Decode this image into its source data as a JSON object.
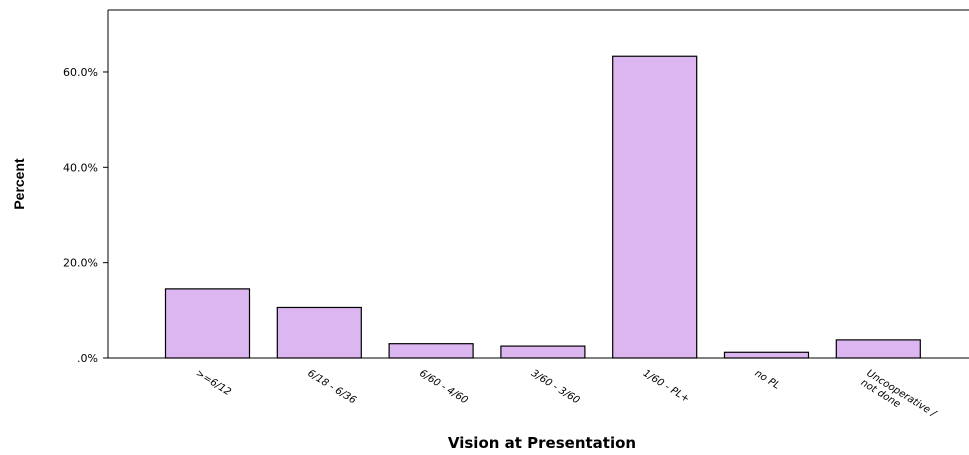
{
  "chart_data": {
    "type": "bar",
    "title": "",
    "xlabel": "Vision at Presentation",
    "ylabel": "Percent",
    "categories": [
      ">=6/12",
      "6/18 - 6/36",
      "6/60 - 4/60",
      "3/60 - 3/60",
      "1/60 - PL+",
      "no PL",
      "Uncooperative / not done"
    ],
    "category_lines": [
      [
        ">=6/12"
      ],
      [
        "6/18 - 6/36"
      ],
      [
        "6/60 - 4/60"
      ],
      [
        "3/60 - 3/60"
      ],
      [
        "1/60 - PL+"
      ],
      [
        "no PL"
      ],
      [
        "Uncooperative /",
        "not done"
      ]
    ],
    "values": [
      14.5,
      10.6,
      3.0,
      2.5,
      63.3,
      1.2,
      3.8
    ],
    "yticks": [
      0,
      20,
      40,
      60
    ],
    "ytick_labels": [
      ".0%",
      "20.0%",
      "40.0%",
      "60.0%"
    ],
    "ylim": [
      0,
      73
    ],
    "bar_color": "#dcb6f0",
    "bar_edge_color": "#000000",
    "grid": false,
    "legend": "none"
  }
}
